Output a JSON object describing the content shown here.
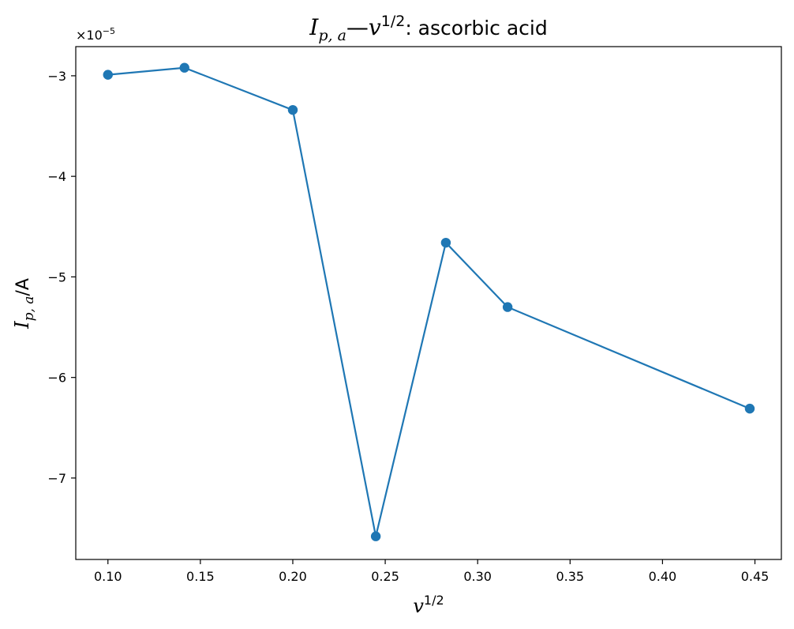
{
  "chart_data": {
    "type": "line",
    "title": {
      "main": "I",
      "main_sub": "p, a",
      "dash": "—",
      "var": "v",
      "var_sup": "1/2",
      "rest": ": ascorbic acid"
    },
    "xlabel": {
      "main": "v",
      "sup": "1/2"
    },
    "ylabel": {
      "main": "I",
      "sub": "p, a",
      "unit": "/A"
    },
    "offset_label": {
      "prefix": "×10",
      "exp": "−5"
    },
    "x_ticks": [
      {
        "value": 0.1,
        "label": "0.10"
      },
      {
        "value": 0.15,
        "label": "0.15"
      },
      {
        "value": 0.2,
        "label": "0.20"
      },
      {
        "value": 0.25,
        "label": "0.25"
      },
      {
        "value": 0.3,
        "label": "0.30"
      },
      {
        "value": 0.35,
        "label": "0.35"
      },
      {
        "value": 0.4,
        "label": "0.40"
      },
      {
        "value": 0.45,
        "label": "0.45"
      }
    ],
    "y_ticks": [
      {
        "value": -3,
        "label": "−3"
      },
      {
        "value": -4,
        "label": "−4"
      },
      {
        "value": -5,
        "label": "−5"
      },
      {
        "value": -6,
        "label": "−6"
      },
      {
        "value": -7,
        "label": "−7"
      }
    ],
    "xlim": [
      0.0826,
      0.4643
    ],
    "ylim": [
      -7.81,
      -2.71
    ],
    "y_scale_factor": 1e-05,
    "series": [
      {
        "color": "#1f77b4",
        "marker": "circle",
        "x": [
          0.1,
          0.1414,
          0.2,
          0.2449,
          0.2828,
          0.3162,
          0.4472
        ],
        "y": [
          -2.99,
          -2.92,
          -3.34,
          -7.58,
          -4.66,
          -5.3,
          -6.31
        ]
      }
    ],
    "grid": false,
    "legend": "none"
  }
}
